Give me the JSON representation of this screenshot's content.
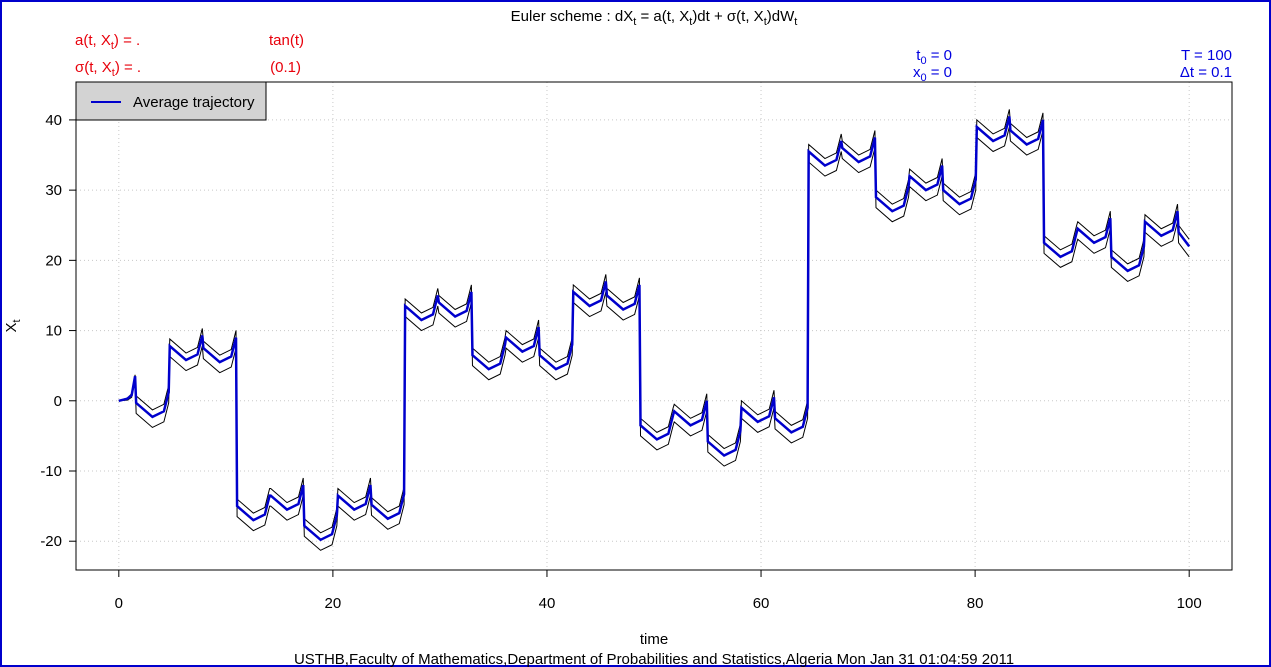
{
  "chart_data": {
    "type": "line",
    "title": [
      "Euler scheme : dX",
      "t",
      " = a(t, X",
      "t",
      ")dt + σ(t, X",
      "t",
      ")dW",
      "t"
    ],
    "annotations": [
      {
        "text": [
          "a(t, X",
          "t",
          ") = ."
        ],
        "color": "#e8000b"
      },
      {
        "text": [
          "tan(t)"
        ],
        "color": "#e8000b"
      },
      {
        "text": [
          "σ(t, X",
          "t",
          ") = ."
        ],
        "color": "#e8000b"
      },
      {
        "text": [
          "(0.1)"
        ],
        "color": "#e8000b"
      },
      {
        "text": [
          "t",
          "0",
          " = 0"
        ],
        "color": "#0000e0"
      },
      {
        "text": [
          "x",
          "0",
          " = 0"
        ],
        "color": "#0000e0"
      },
      {
        "text": [
          "T = 100"
        ],
        "color": "#0000e0"
      },
      {
        "text": [
          "Δt = 0.1"
        ],
        "color": "#0000e0"
      }
    ],
    "xlabel": "time",
    "ylabel": [
      "X",
      "t"
    ],
    "footer": "USTHB,Faculty of Mathematics,Department of Probabilities and Statistics,Algeria Mon Jan 31 01:04:59 2011",
    "xlim": [
      -4,
      104
    ],
    "ylim": [
      -24.1,
      45.4
    ],
    "xticks": [
      0,
      20,
      40,
      60,
      80,
      100
    ],
    "yticks": [
      -20,
      -10,
      0,
      10,
      20,
      30,
      40
    ],
    "grid": true,
    "legend": "top-left",
    "x": [
      0,
      0.8,
      1.2,
      1.52,
      1.62,
      3.14,
      4.21,
      4.66,
      4.76,
      6.28,
      7.35,
      7.8,
      7.9,
      9.43,
      10.5,
      10.95,
      11.05,
      12.57,
      13.64,
      14.09,
      14.19,
      15.71,
      16.78,
      17.23,
      17.33,
      18.85,
      19.92,
      20.37,
      20.47,
      21.99,
      23.06,
      23.51,
      23.61,
      25.13,
      26.2,
      26.65,
      26.75,
      28.27,
      29.35,
      29.8,
      29.9,
      31.42,
      32.49,
      32.94,
      33.04,
      34.56,
      35.63,
      36.08,
      36.18,
      37.7,
      38.77,
      39.22,
      39.32,
      40.84,
      41.91,
      42.36,
      42.46,
      43.98,
      45.05,
      45.5,
      45.6,
      47.12,
      48.19,
      48.64,
      48.74,
      50.27,
      51.34,
      51.79,
      51.89,
      53.41,
      54.48,
      54.93,
      55.03,
      56.55,
      57.62,
      58.07,
      58.17,
      59.69,
      60.76,
      61.21,
      61.31,
      62.83,
      63.9,
      64.35,
      64.45,
      65.97,
      67.04,
      67.49,
      67.59,
      69.12,
      70.19,
      70.64,
      70.74,
      72.26,
      73.33,
      73.78,
      73.88,
      75.4,
      76.47,
      76.92,
      77.02,
      78.54,
      79.61,
      80.06,
      80.16,
      81.68,
      82.75,
      83.2,
      83.3,
      84.82,
      85.89,
      86.34,
      86.44,
      87.97,
      89.04,
      89.49,
      89.59,
      91.11,
      92.18,
      92.63,
      92.73,
      94.25,
      95.32,
      95.77,
      95.87,
      97.39,
      98.46,
      98.91,
      99.01,
      99.5,
      100
    ],
    "series": [
      {
        "color": "#000000",
        "values": [
          0,
          0.4,
          1,
          3.7,
          0.7,
          -1.3,
          -0.5,
          2.2,
          8.8,
          6.8,
          7.6,
          10.3,
          8.5,
          6.5,
          7.3,
          10,
          -14,
          -16,
          -15.2,
          -12.5,
          -12.5,
          -14.5,
          -13.7,
          -11,
          -16.8,
          -18.8,
          -18,
          -15.3,
          -12.5,
          -14.5,
          -13.7,
          -11,
          -13.8,
          -15.8,
          -15,
          -12.3,
          14.5,
          12.5,
          13.3,
          16,
          15,
          13,
          13.8,
          16.5,
          7.5,
          5.5,
          6.3,
          9,
          10,
          8,
          8.8,
          11.5,
          7.5,
          5.5,
          6.3,
          9,
          16.5,
          14.5,
          15.3,
          18,
          16,
          14,
          14.8,
          17.5,
          -2.5,
          -4.5,
          -3.7,
          -1,
          -0.5,
          -2.5,
          -1.7,
          1,
          -4.8,
          -6.8,
          -6,
          -3.3,
          0,
          -2,
          -1.2,
          1.5,
          -1.5,
          -3.5,
          -2.7,
          0,
          36.5,
          34.5,
          35.3,
          38,
          37,
          35,
          35.8,
          38.5,
          30,
          28,
          28.8,
          31.5,
          33,
          31,
          31.8,
          34.5,
          31,
          29,
          29.8,
          32.5,
          40,
          38,
          38.8,
          41.5,
          39.5,
          37.5,
          38.3,
          41,
          23.5,
          21.5,
          22.3,
          25,
          25.5,
          23.5,
          24.3,
          27,
          21.5,
          19.5,
          20.3,
          23,
          26.5,
          24.5,
          25.3,
          28,
          25,
          24,
          23
        ]
      },
      {
        "color": "#000000",
        "values": [
          0,
          0.1,
          0.5,
          3,
          -1.8,
          -3.8,
          -3,
          -0.3,
          6.3,
          4.3,
          5.1,
          7.8,
          6,
          4,
          4.8,
          7.5,
          -16.5,
          -18.5,
          -17.7,
          -15,
          -15,
          -17,
          -16.2,
          -13.5,
          -19.3,
          -21.3,
          -20.5,
          -17.8,
          -15,
          -17,
          -16.2,
          -13.5,
          -16.3,
          -18.3,
          -17.5,
          -14.8,
          12,
          10,
          10.8,
          13.5,
          12.5,
          10.5,
          11.3,
          14,
          5,
          3,
          3.8,
          6.5,
          7.5,
          5.5,
          6.3,
          9,
          5,
          3,
          3.8,
          6.5,
          14,
          12,
          12.8,
          15.5,
          13.5,
          11.5,
          12.3,
          15,
          -5,
          -7,
          -6.2,
          -3.5,
          -3,
          -5,
          -4.2,
          -1.5,
          -7.3,
          -9.3,
          -8.5,
          -5.8,
          -2.5,
          -4.5,
          -3.7,
          -1,
          -4,
          -6,
          -5.2,
          -2.5,
          34,
          32,
          32.8,
          35.5,
          34.5,
          32.5,
          33.3,
          36,
          27.5,
          25.5,
          26.3,
          29,
          30.5,
          28.5,
          29.3,
          32,
          28.5,
          26.5,
          27.3,
          30,
          37.5,
          35.5,
          36.3,
          39,
          37,
          35,
          35.8,
          38.5,
          21,
          19,
          19.8,
          22.5,
          23,
          21,
          21.8,
          24.5,
          19,
          17,
          17.8,
          20.5,
          24,
          22,
          22.8,
          25.5,
          22.5,
          21.5,
          20.5
        ]
      },
      {
        "name": "Average trajectory",
        "color": "#0000cc",
        "values": [
          0,
          0.3,
          0.8,
          3.5,
          -0.3,
          -2.3,
          -1.5,
          1.2,
          7.8,
          5.8,
          6.6,
          9.3,
          7.5,
          5.5,
          6.3,
          9,
          -15,
          -17,
          -16.2,
          -13.5,
          -13.5,
          -15.5,
          -14.7,
          -12,
          -17.8,
          -19.8,
          -19,
          -16.3,
          -13.5,
          -15.5,
          -14.7,
          -12,
          -14.8,
          -16.8,
          -16,
          -13.3,
          13.5,
          11.5,
          12.3,
          15,
          14,
          12,
          12.8,
          15.5,
          6.5,
          4.5,
          5.3,
          8,
          9,
          7,
          7.8,
          10.5,
          6.5,
          4.5,
          5.3,
          8,
          15.5,
          13.5,
          14.3,
          17,
          15,
          13,
          13.8,
          16.5,
          -3.5,
          -5.5,
          -4.7,
          -2,
          -1.5,
          -3.5,
          -2.7,
          0,
          -5.8,
          -7.8,
          -7,
          -4.3,
          -1,
          -3,
          -2.2,
          0.5,
          -2.5,
          -4.5,
          -3.7,
          -1,
          35.5,
          33.5,
          34.3,
          37,
          36,
          34,
          34.8,
          37.5,
          29,
          27,
          27.8,
          30.5,
          32,
          30,
          30.8,
          33.5,
          30,
          28,
          28.8,
          31.5,
          39,
          37,
          37.8,
          40.5,
          38.5,
          36.5,
          37.3,
          40,
          22.5,
          20.5,
          21.3,
          24,
          24.5,
          22.5,
          23.3,
          26,
          20.5,
          18.5,
          19.3,
          22,
          25.5,
          23.5,
          24.3,
          27,
          24,
          23,
          22
        ]
      }
    ]
  }
}
